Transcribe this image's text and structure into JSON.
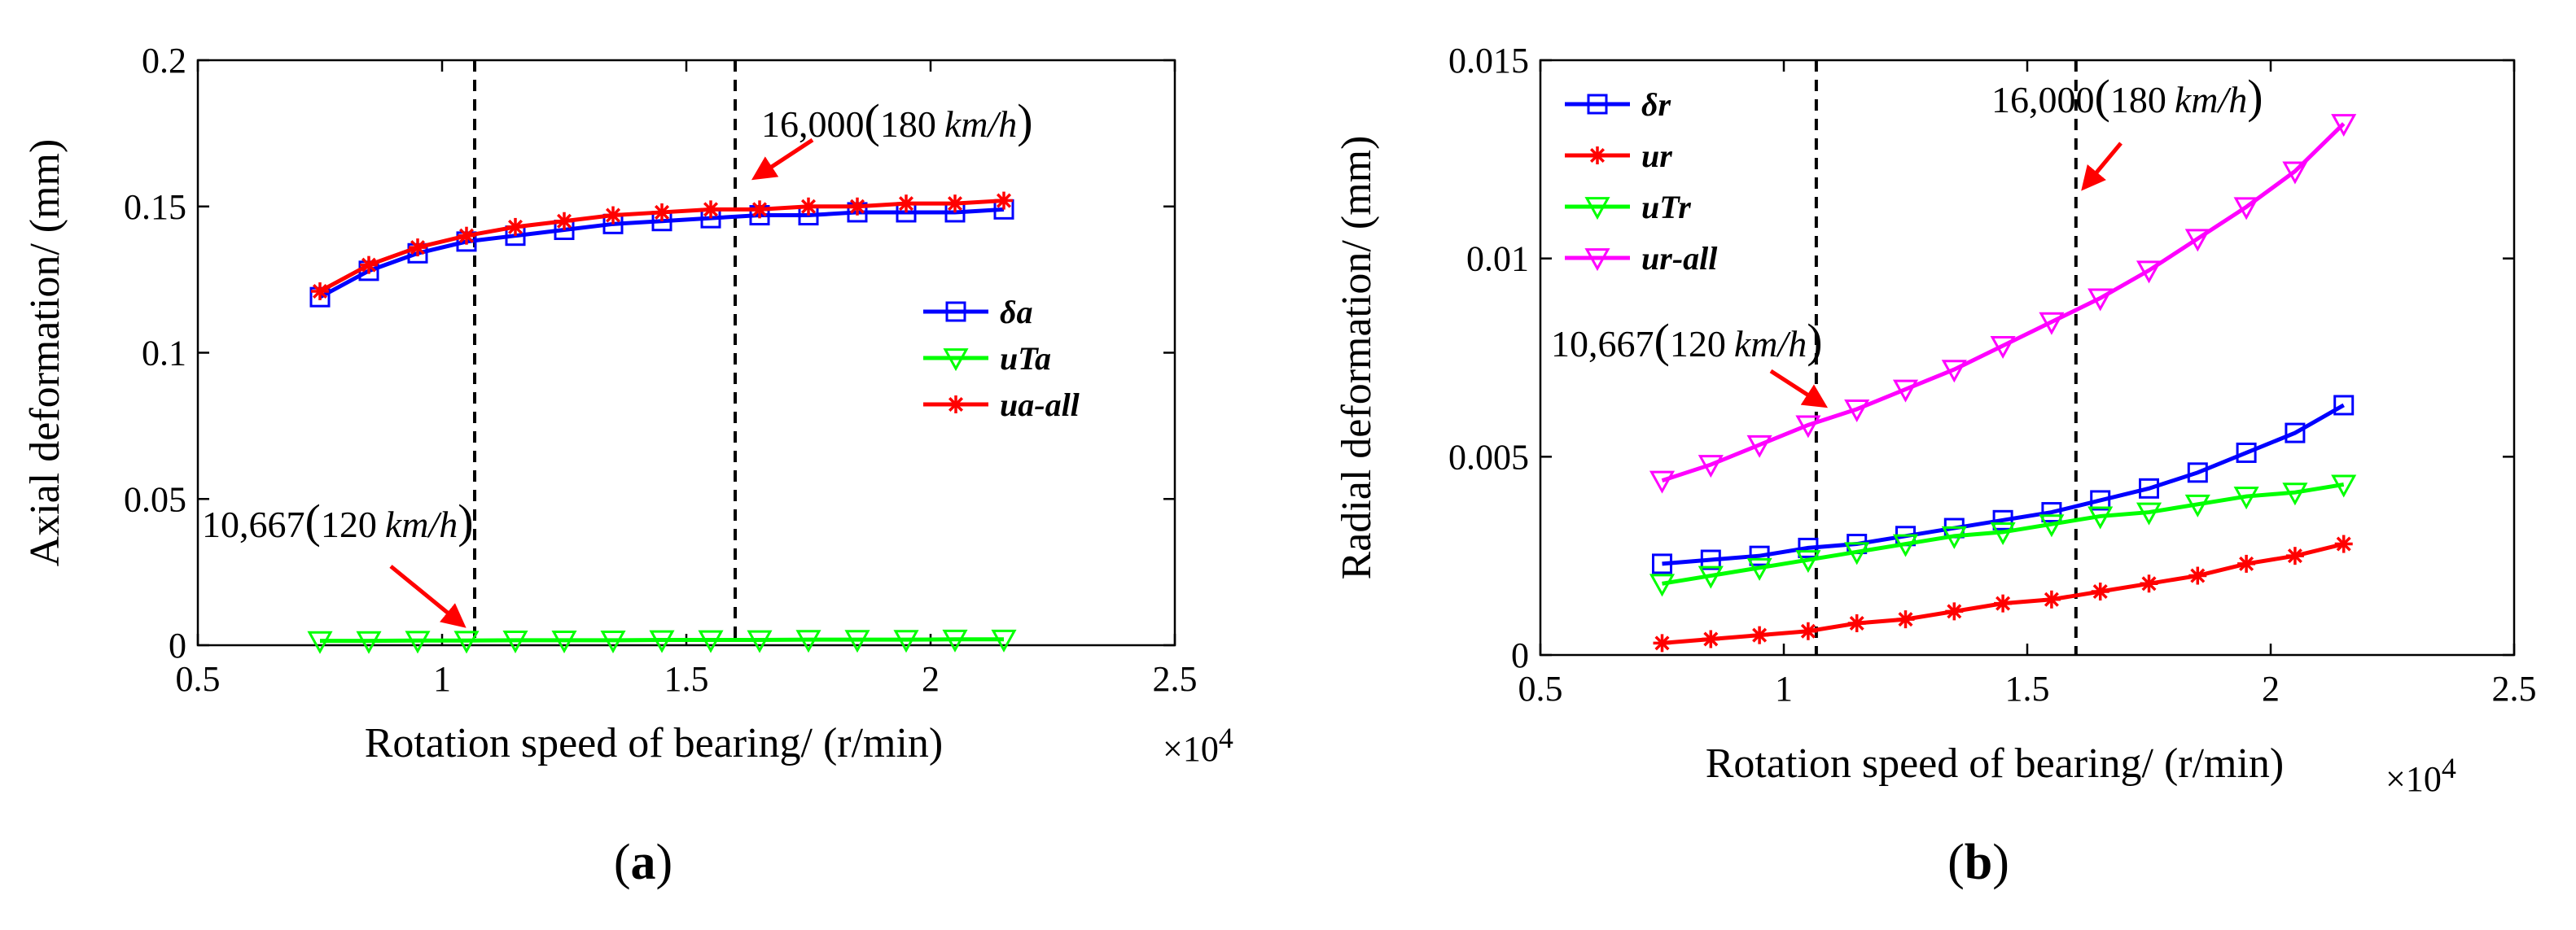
{
  "chart_data": [
    {
      "id": "a",
      "type": "line",
      "panel_label": "a",
      "xlabel": "Rotation speed of bearing/ (r/min)",
      "x_multiplier": "×10",
      "x_multiplier_exp": "4",
      "ylabel": "Axial deformation/ (mm)",
      "xlim": [
        0.5,
        2.5
      ],
      "ylim": [
        0,
        0.2
      ],
      "x_ticks": [
        0.5,
        1,
        1.5,
        2,
        2.5
      ],
      "x_tick_labels": [
        "0.5",
        "1",
        "1.5",
        "2",
        "2.5"
      ],
      "y_ticks": [
        0,
        0.05,
        0.1,
        0.15,
        0.2
      ],
      "y_tick_labels": [
        "0",
        "0.05",
        "0.1",
        "0.15",
        "0.2"
      ],
      "legend_position": "center-right",
      "x": [
        0.75,
        0.85,
        0.95,
        1.05,
        1.15,
        1.25,
        1.35,
        1.45,
        1.55,
        1.65,
        1.75,
        1.85,
        1.95,
        2.05,
        2.15
      ],
      "series": [
        {
          "name": "δa",
          "color": "#0000ff",
          "marker": "square",
          "values": [
            0.119,
            0.128,
            0.134,
            0.138,
            0.14,
            0.142,
            0.144,
            0.145,
            0.146,
            0.147,
            0.147,
            0.148,
            0.148,
            0.148,
            0.149
          ]
        },
        {
          "name": "uTa",
          "color": "#00ff00",
          "marker": "triangle-down",
          "values": [
            0.0015,
            0.0015,
            0.0016,
            0.0016,
            0.0017,
            0.0017,
            0.0017,
            0.0018,
            0.0018,
            0.0018,
            0.0019,
            0.0019,
            0.0019,
            0.002,
            0.002
          ]
        },
        {
          "name": "ua-all",
          "color": "#ff0000",
          "marker": "asterisk",
          "values": [
            0.121,
            0.13,
            0.136,
            0.14,
            0.143,
            0.145,
            0.147,
            0.148,
            0.149,
            0.149,
            0.15,
            0.15,
            0.151,
            0.151,
            0.152
          ]
        }
      ],
      "vlines": [
        1.0667,
        1.6
      ],
      "annotations": [
        {
          "num": "10,667",
          "speed": "120",
          "unit": "km/h",
          "target_x": 1.0667,
          "target_y": 0.0015
        },
        {
          "num": "16,000",
          "speed": "180",
          "unit": "km/h",
          "target_x": 1.6,
          "target_y": 0.149
        }
      ]
    },
    {
      "id": "b",
      "type": "line",
      "panel_label": "b",
      "xlabel": "Rotation speed of bearing/ (r/min)",
      "x_multiplier": "×10",
      "x_multiplier_exp": "4",
      "ylabel": "Radial deformation/ (mm)",
      "xlim": [
        0.5,
        2.5
      ],
      "ylim": [
        0,
        0.015
      ],
      "x_ticks": [
        0.5,
        1,
        1.5,
        2,
        2.5
      ],
      "x_tick_labels": [
        "0.5",
        "1",
        "1.5",
        "2",
        "2.5"
      ],
      "y_ticks": [
        0,
        0.005,
        0.01,
        0.015
      ],
      "y_tick_labels": [
        "0",
        "0.005",
        "0.01",
        "0.015"
      ],
      "legend_position": "top-left",
      "x": [
        0.75,
        0.85,
        0.95,
        1.05,
        1.15,
        1.25,
        1.35,
        1.45,
        1.55,
        1.65,
        1.75,
        1.85,
        1.95,
        2.05,
        2.15
      ],
      "series": [
        {
          "name": "δr",
          "color": "#0000ff",
          "marker": "square",
          "values": [
            0.0023,
            0.0024,
            0.0025,
            0.0027,
            0.0028,
            0.003,
            0.0032,
            0.0034,
            0.0036,
            0.0039,
            0.0042,
            0.0046,
            0.0051,
            0.0056,
            0.0063
          ]
        },
        {
          "name": "ur",
          "color": "#ff0000",
          "marker": "asterisk",
          "values": [
            0.0003,
            0.0004,
            0.0005,
            0.0006,
            0.0008,
            0.0009,
            0.0011,
            0.0013,
            0.0014,
            0.0016,
            0.0018,
            0.002,
            0.0023,
            0.0025,
            0.0028
          ]
        },
        {
          "name": "uTr",
          "color": "#00ff00",
          "marker": "triangle-down",
          "values": [
            0.0018,
            0.002,
            0.0022,
            0.0024,
            0.0026,
            0.0028,
            0.003,
            0.0031,
            0.0033,
            0.0035,
            0.0036,
            0.0038,
            0.004,
            0.0041,
            0.0043
          ]
        },
        {
          "name": "ur-all",
          "color": "#ff00ff",
          "marker": "triangle-down",
          "values": [
            0.0044,
            0.0048,
            0.0053,
            0.0058,
            0.0062,
            0.0067,
            0.0072,
            0.0078,
            0.0084,
            0.009,
            0.0097,
            0.0105,
            0.0113,
            0.0122,
            0.0134
          ]
        }
      ],
      "vlines": [
        1.0667,
        1.6
      ],
      "annotations": [
        {
          "num": "10,667",
          "speed": "120",
          "unit": "km/h",
          "target_x": 1.0667,
          "target_y": 0.0064
        },
        {
          "num": "16,000",
          "speed": "180",
          "unit": "km/h",
          "target_x": 1.6,
          "target_y": 0.0117
        }
      ]
    }
  ]
}
